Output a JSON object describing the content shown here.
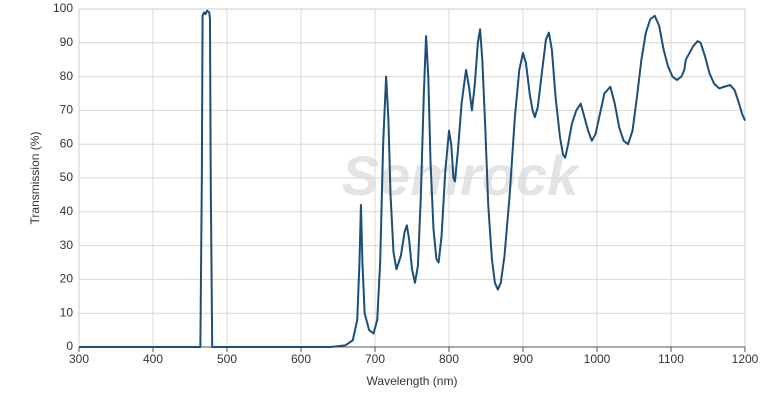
{
  "chart_data": {
    "type": "line",
    "watermark": "Semrock",
    "x_label": "Wavelength (nm)",
    "y_label": "Transmission (%)",
    "xlim": [
      300,
      1200
    ],
    "ylim": [
      0,
      100
    ],
    "xticks": [
      300,
      400,
      500,
      600,
      700,
      800,
      900,
      1000,
      1100,
      1200
    ],
    "yticks": [
      0,
      10,
      20,
      30,
      40,
      50,
      60,
      70,
      80,
      90,
      100
    ],
    "grid": true,
    "color": "#1b4f7a",
    "x": [
      300,
      460,
      464,
      466,
      467,
      469,
      471,
      473,
      476,
      477,
      478,
      480,
      640,
      660,
      670,
      676,
      679,
      681,
      683,
      686,
      692,
      698,
      703,
      707,
      711,
      715,
      718,
      721,
      725,
      729,
      735,
      740,
      743,
      746,
      750,
      754,
      758,
      762,
      766,
      769,
      772,
      775,
      779,
      783,
      786,
      790,
      795,
      800,
      803,
      806,
      808,
      812,
      817,
      823,
      827,
      831,
      835,
      839,
      842,
      845,
      849,
      853,
      858,
      862,
      866,
      870,
      875,
      882,
      889,
      895,
      900,
      904,
      909,
      913,
      916,
      920,
      926,
      931,
      935,
      939,
      944,
      950,
      954,
      957,
      961,
      966,
      972,
      978,
      983,
      988,
      993,
      998,
      1004,
      1010,
      1018,
      1024,
      1030,
      1036,
      1042,
      1048,
      1054,
      1060,
      1066,
      1072,
      1078,
      1084,
      1090,
      1096,
      1102,
      1108,
      1114,
      1118,
      1120,
      1125,
      1130,
      1136,
      1140,
      1146,
      1152,
      1158,
      1165,
      1172,
      1180,
      1186,
      1192,
      1196,
      1200
    ],
    "values": [
      0,
      0,
      0,
      50,
      98,
      99,
      98.5,
      99.5,
      99,
      97,
      50,
      0,
      0,
      0.5,
      2,
      8,
      25,
      42,
      25,
      10,
      5,
      4,
      8,
      25,
      60,
      80,
      68,
      45,
      28,
      23,
      27,
      34,
      36,
      32,
      23,
      19,
      24,
      45,
      75,
      92,
      80,
      55,
      35,
      26,
      25,
      33,
      52,
      64,
      60,
      50,
      49,
      58,
      72,
      82,
      77,
      70,
      78,
      90,
      94,
      85,
      65,
      42,
      26,
      19,
      17,
      19,
      27,
      45,
      68,
      82,
      87,
      84,
      75,
      70,
      68,
      71,
      82,
      91,
      93,
      88,
      74,
      62,
      57,
      56,
      60,
      66,
      70,
      72,
      68,
      64,
      61,
      63,
      69,
      75,
      77,
      72,
      65,
      61,
      60,
      64,
      74,
      85,
      93,
      97,
      98,
      95,
      88,
      83,
      80,
      79,
      80,
      82,
      85,
      87,
      89,
      90.5,
      90,
      86,
      81,
      78,
      76.5,
      77,
      77.5,
      76,
      72,
      69,
      67
    ]
  }
}
